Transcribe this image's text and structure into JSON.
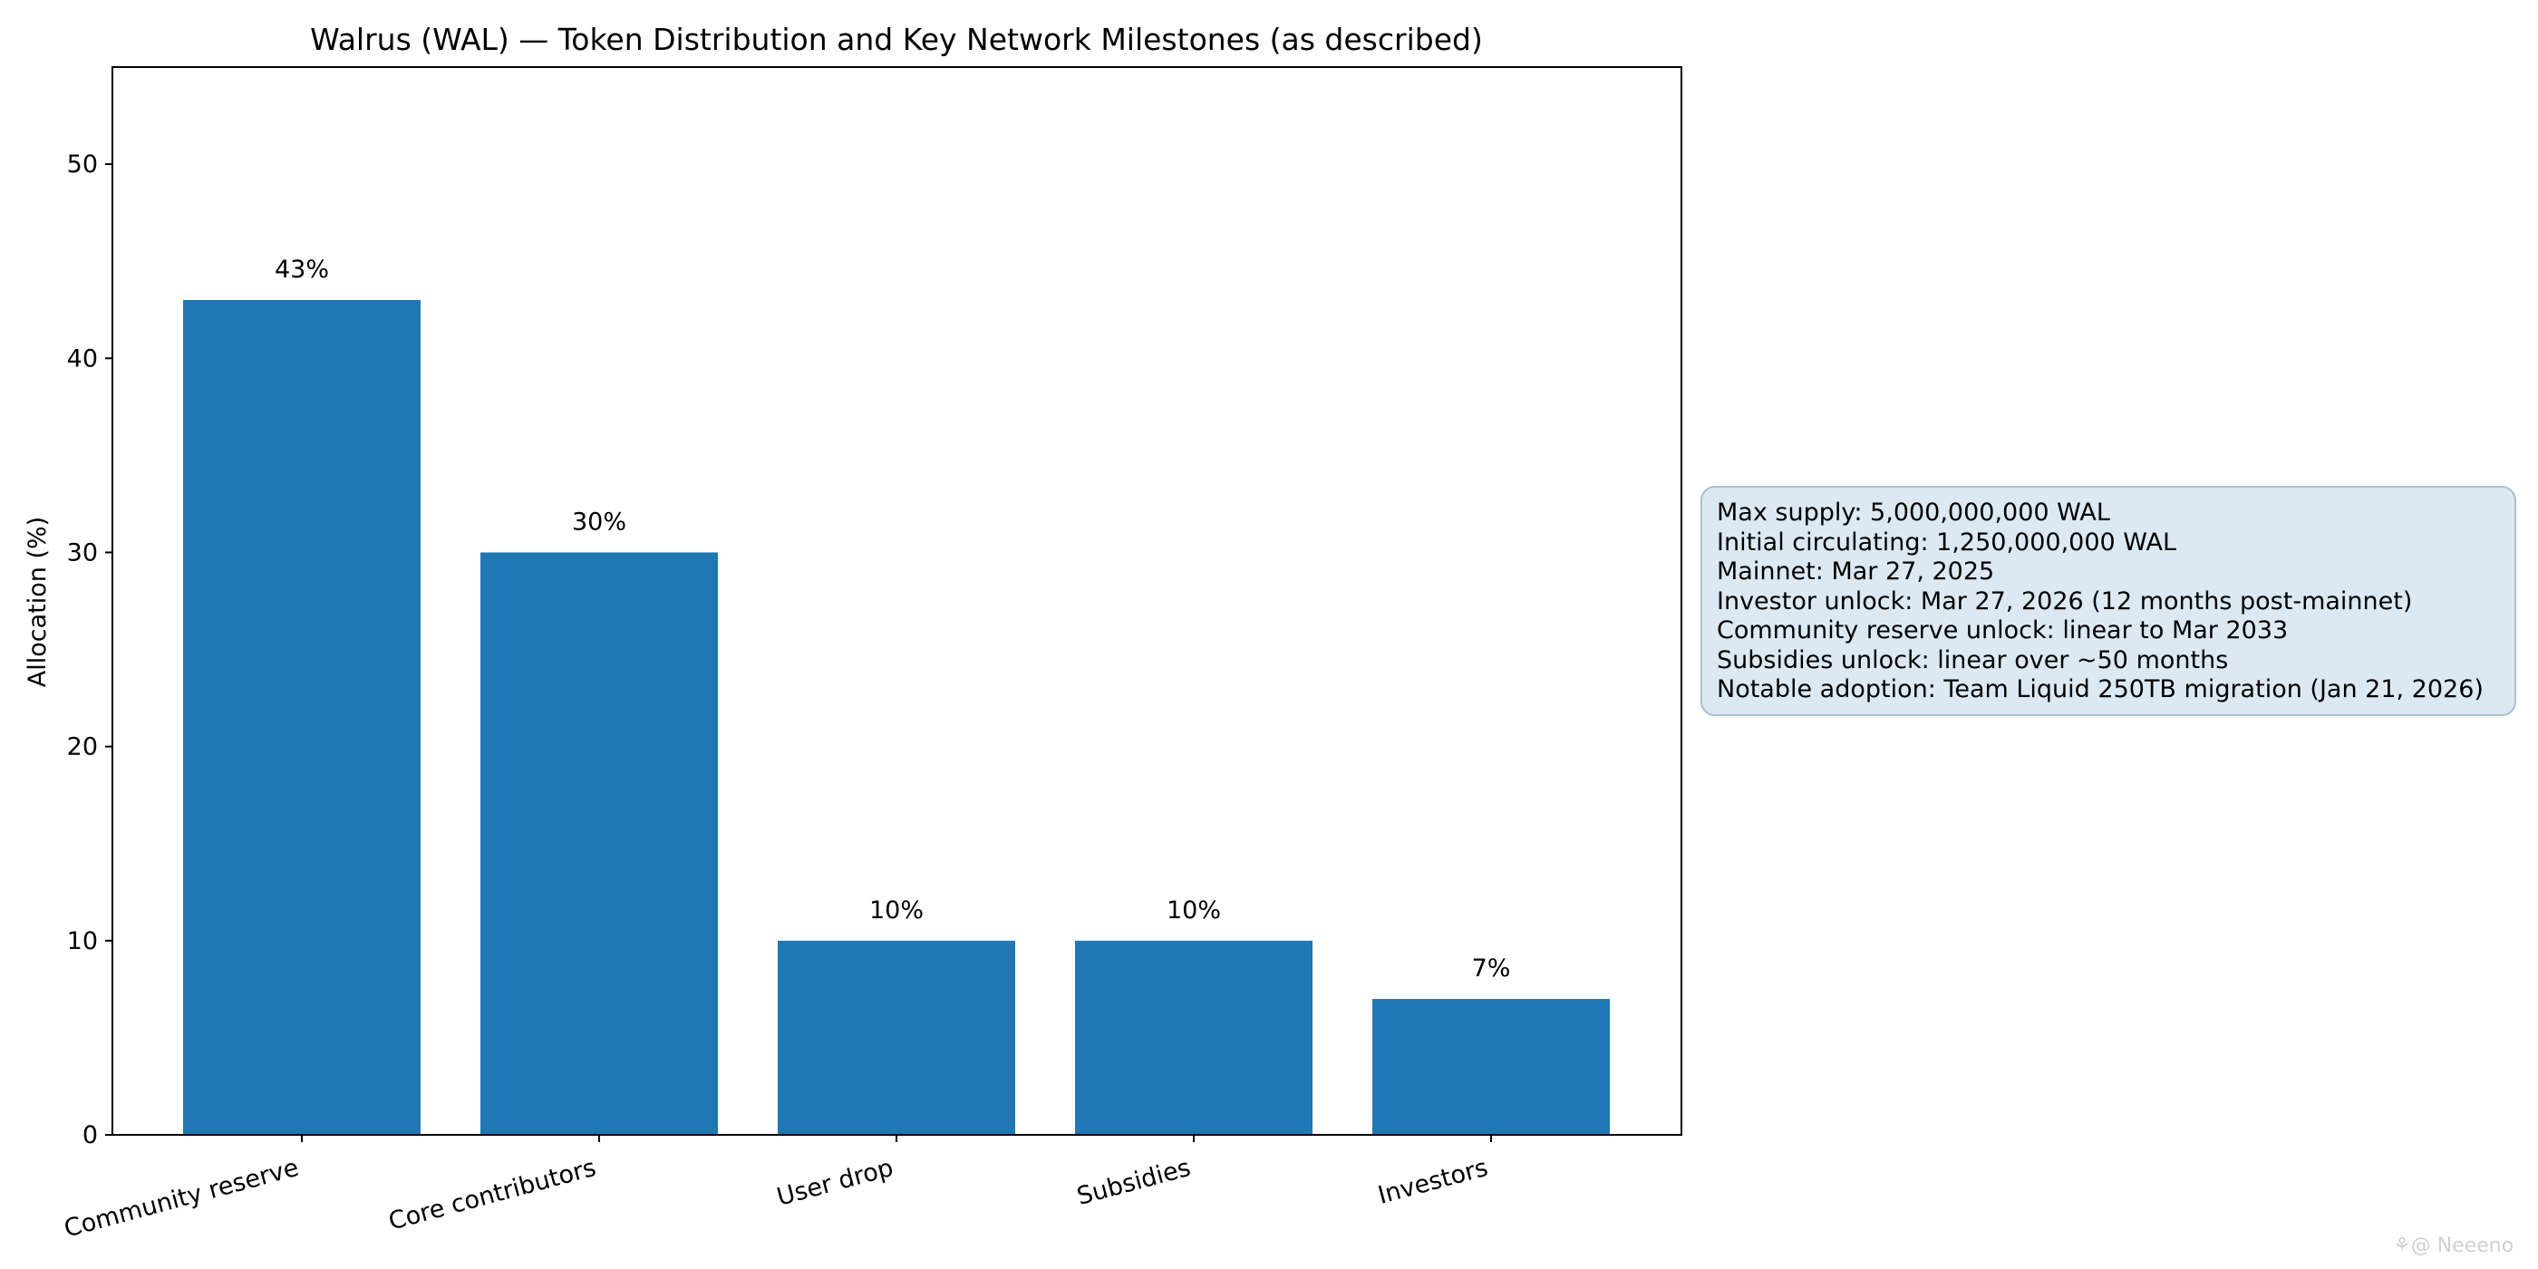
{
  "chart_data": {
    "type": "bar",
    "title": "Walrus (WAL) — Token Distribution and Key Network Milestones (as described)",
    "xlabel": "",
    "ylabel": "Allocation (%)",
    "categories": [
      "Community reserve",
      "Core contributors",
      "User drop",
      "Subsidies",
      "Investors"
    ],
    "values": [
      43,
      30,
      10,
      10,
      7
    ],
    "data_labels": [
      "43%",
      "30%",
      "10%",
      "10%",
      "7%"
    ],
    "ylim": [
      0,
      55
    ],
    "yticks": [
      0,
      10,
      20,
      30,
      40,
      50
    ],
    "ytick_labels": [
      "0",
      "10",
      "20",
      "30",
      "40",
      "50"
    ],
    "bar_color": "#1f77b4",
    "grid": false,
    "legend": "none"
  },
  "info_box": {
    "lines": [
      "Max supply: 5,000,000,000 WAL",
      "Initial circulating: 1,250,000,000 WAL",
      "Mainnet: Mar 27, 2025",
      "Investor unlock: Mar 27, 2026 (12 months post-mainnet)",
      "Community reserve unlock: linear to Mar 2033",
      "Subsidies unlock: linear over ~50 months",
      "Notable adoption: Team Liquid 250TB migration (Jan 21, 2026)"
    ],
    "background": "#dce9f3",
    "border_color": "#a8bfd0"
  },
  "watermark": {
    "text": "⚘@ Neeeno"
  }
}
